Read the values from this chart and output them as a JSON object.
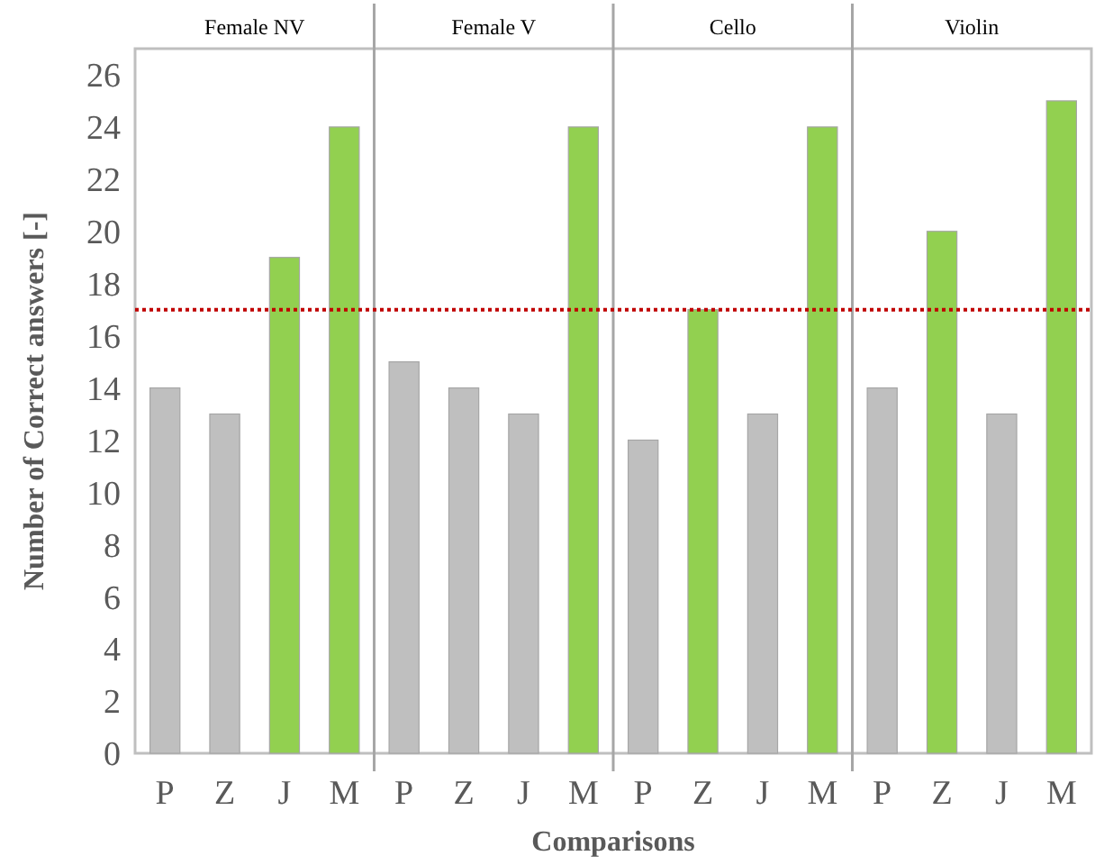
{
  "chart_data": {
    "type": "bar",
    "xlabel": "Comparisons",
    "ylabel": "Number of Correct answers [-]",
    "categories": [
      "P",
      "Z",
      "J",
      "M",
      "P",
      "Z",
      "J",
      "M",
      "P",
      "Z",
      "J",
      "M",
      "P",
      "Z",
      "J",
      "M"
    ],
    "values": [
      14,
      13,
      19,
      24,
      15,
      14,
      13,
      24,
      12,
      17,
      13,
      24,
      14,
      20,
      13,
      25
    ],
    "colors": [
      "#bfbfbf",
      "#bfbfbf",
      "#92d050",
      "#92d050",
      "#bfbfbf",
      "#bfbfbf",
      "#bfbfbf",
      "#92d050",
      "#bfbfbf",
      "#92d050",
      "#bfbfbf",
      "#92d050",
      "#bfbfbf",
      "#92d050",
      "#bfbfbf",
      "#92d050"
    ],
    "ylim": [
      0,
      27
    ],
    "yticks": [
      0,
      2,
      4,
      6,
      8,
      10,
      12,
      14,
      16,
      18,
      20,
      22,
      24,
      26
    ],
    "grid": false,
    "ref_lines": [
      {
        "axis": "y",
        "value": 17,
        "color": "#c00000",
        "line_style": "dotted"
      }
    ],
    "annotations": [
      "Female NV",
      "Female V",
      "Cello",
      "Violin"
    ]
  }
}
